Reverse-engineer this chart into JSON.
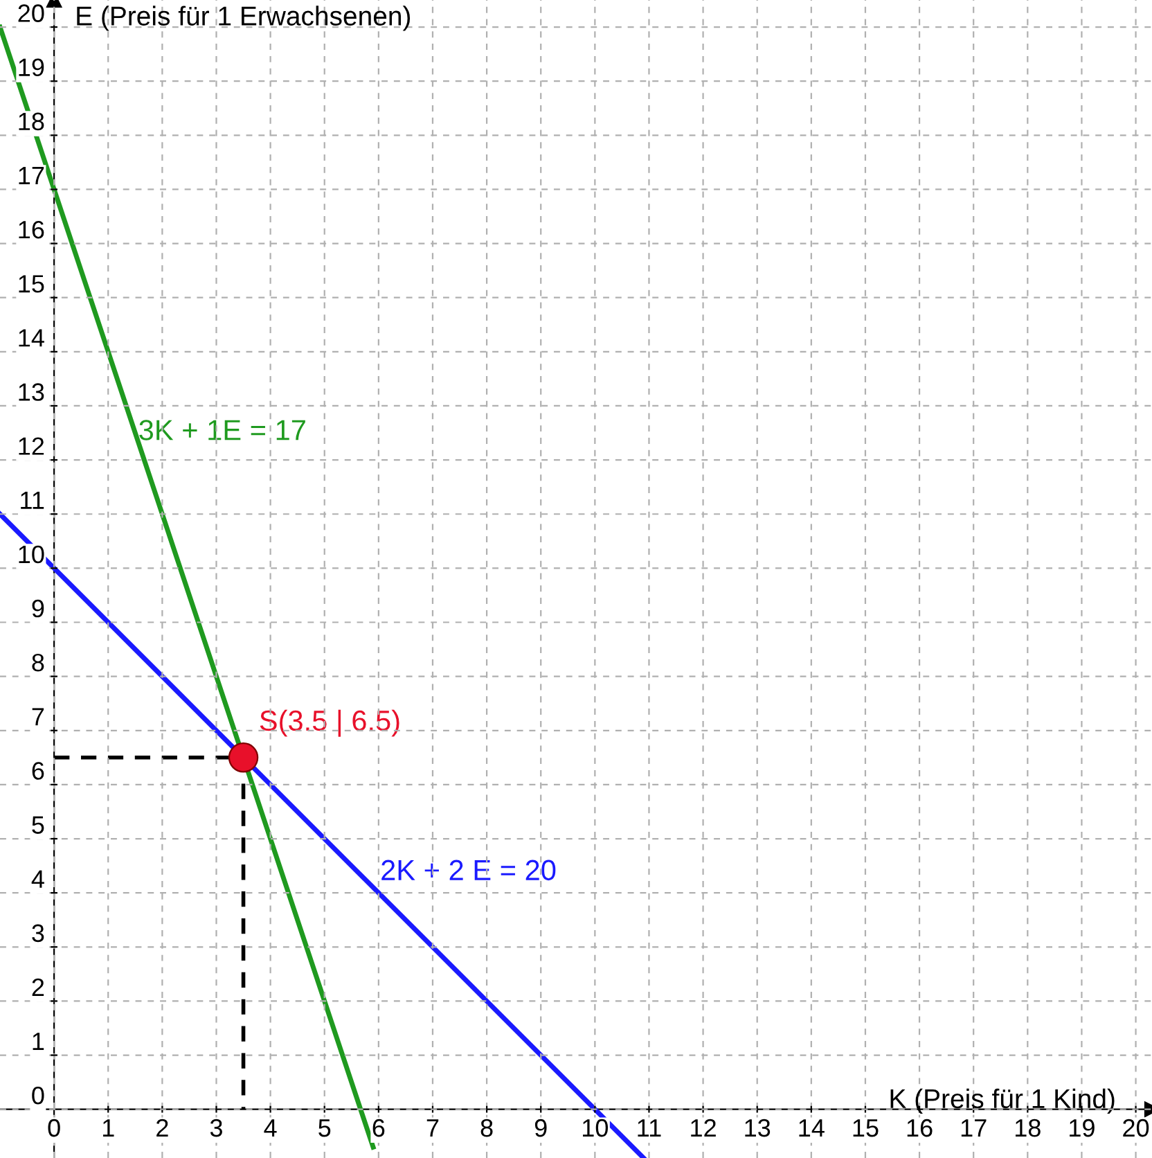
{
  "chart_data": {
    "type": "line",
    "xlabel": "K (Preis für 1 Kind)",
    "ylabel": "E (Preis für 1 Erwachsenen)",
    "xlim": [
      -1,
      20.3
    ],
    "ylim": [
      -0.9,
      20.5
    ],
    "xticks": [
      0,
      1,
      2,
      3,
      4,
      5,
      6,
      7,
      8,
      9,
      10,
      11,
      12,
      13,
      14,
      15,
      16,
      17,
      18,
      19,
      20
    ],
    "yticks": [
      0,
      1,
      2,
      3,
      4,
      5,
      6,
      7,
      8,
      9,
      10,
      11,
      12,
      13,
      14,
      15,
      16,
      17,
      18,
      19,
      20
    ],
    "grid": true,
    "series": [
      {
        "name": "3K + 1E = 17",
        "color": "#1f9a1f",
        "x": [
          -1,
          5.9
        ],
        "values": [
          20,
          -0.7
        ]
      },
      {
        "name": "2K + 2 E = 20",
        "color": "#1a1aff",
        "x": [
          -1,
          10.9
        ],
        "values": [
          11,
          -0.9
        ]
      },
      {
        "type": "line",
        "color": "#000000",
        "line_style": "dashed",
        "x": [
          0,
          3.5,
          3.5
        ],
        "values": [
          6.5,
          6.5,
          0
        ]
      },
      {
        "type": "scatter",
        "color": "#e8102a",
        "marker": "circle",
        "x": [
          3.5
        ],
        "values": [
          6.5
        ]
      }
    ],
    "annotations": [
      {
        "text": "S(3.5 | 6.5)",
        "x": 3.5,
        "y": 6.5
      }
    ]
  }
}
